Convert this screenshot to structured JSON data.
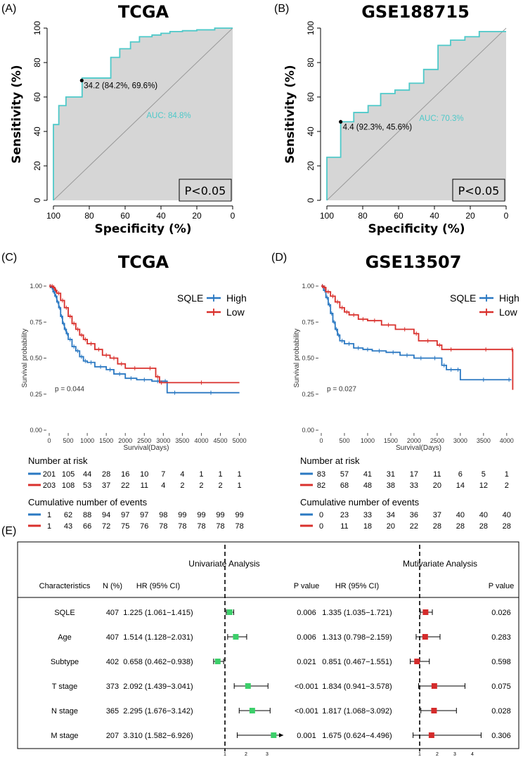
{
  "panels": {
    "A": {
      "label": "(A)",
      "title": "TCGA"
    },
    "B": {
      "label": "(B)",
      "title": "GSE188715"
    },
    "C": {
      "label": "(C)",
      "title": "TCGA"
    },
    "D": {
      "label": "(D)",
      "title": "GSE13507"
    },
    "E": {
      "label": "(E)"
    }
  },
  "roc_axes": {
    "ylabel": "Sensitivity (%)",
    "xlabel": "Specificity (%)",
    "ticks": [
      "100",
      "80",
      "60",
      "40",
      "20",
      "0"
    ]
  },
  "km_axes": {
    "ylabel": "Survival probability",
    "xlabel": "Survival(Days)",
    "yticks": [
      "0.00",
      "0.25",
      "0.50",
      "0.75",
      "1.00"
    ],
    "legend_title": "SQLE",
    "legend_high": "High",
    "legend_low": "Low",
    "number_at_risk": "Number at risk",
    "cum_events": "Cumulative number of events"
  },
  "colors": {
    "roc": "#4ec9c9",
    "high": "#2a78c2",
    "low": "#d9302c",
    "uni": "#3ccf6a",
    "multi": "#d42b2b"
  },
  "chart_data": [
    {
      "type": "line",
      "panel": "A",
      "title": "TCGA",
      "xlabel": "Specificity (%)",
      "ylabel": "Sensitivity (%)",
      "xlim": [
        100,
        0
      ],
      "ylim": [
        0,
        100
      ],
      "auc_text": "AUC: 84.8%",
      "p_text": "P<0.05",
      "cutoff_text": "34.2 (84.2%, 69.6%)",
      "cutoff": [
        84.2,
        69.6
      ],
      "x": [
        100,
        100,
        97,
        97,
        93,
        93,
        84,
        84,
        84,
        68,
        68,
        63,
        63,
        57,
        57,
        52,
        52,
        45,
        45,
        40,
        40,
        35,
        35,
        28,
        28,
        20,
        20,
        10,
        10,
        0
      ],
      "y": [
        0,
        44,
        44,
        55,
        55,
        60,
        60,
        69.6,
        71,
        71,
        83,
        83,
        88,
        88,
        92,
        92,
        95,
        95,
        96,
        96,
        97,
        97,
        98,
        98,
        98.5,
        98.5,
        99,
        99,
        100,
        100
      ]
    },
    {
      "type": "line",
      "panel": "B",
      "title": "GSE188715",
      "xlabel": "Specificity (%)",
      "ylabel": "Sensitivity (%)",
      "xlim": [
        100,
        0
      ],
      "ylim": [
        0,
        100
      ],
      "auc_text": "AUC: 70.3%",
      "p_text": "P<0.05",
      "cutoff_text": "4.4 (92.3%, 45.6%)",
      "cutoff": [
        92.3,
        45.6
      ],
      "x": [
        100,
        100,
        92.3,
        92.3,
        85,
        85,
        77,
        77,
        70,
        70,
        62,
        62,
        54,
        54,
        46,
        46,
        38,
        38,
        31,
        31,
        23,
        23,
        15,
        15,
        0
      ],
      "y": [
        0,
        25,
        25,
        45.6,
        45.6,
        51,
        51,
        55,
        55,
        62,
        62,
        64,
        64,
        68,
        68,
        76,
        76,
        90,
        90,
        93,
        93,
        95,
        95,
        98,
        98
      ]
    },
    {
      "type": "line",
      "panel": "C",
      "title": "TCGA",
      "xlabel": "Survival(Days)",
      "ylabel": "Survival probability",
      "xlim": [
        0,
        5100
      ],
      "ylim": [
        0,
        1
      ],
      "x_ticks": [
        "0",
        "500",
        "1000",
        "1500",
        "2000",
        "2500",
        "3000",
        "3500",
        "4000",
        "4500",
        "5000"
      ],
      "p_text": "p = 0.044",
      "series": [
        {
          "name": "High",
          "x": [
            0,
            50,
            100,
            150,
            200,
            250,
            300,
            350,
            400,
            450,
            500,
            600,
            700,
            800,
            900,
            1000,
            1200,
            1500,
            1700,
            2000,
            2300,
            2700,
            3000,
            3100,
            3500,
            5000
          ],
          "y": [
            1.0,
            0.99,
            0.96,
            0.93,
            0.89,
            0.85,
            0.79,
            0.74,
            0.7,
            0.67,
            0.63,
            0.58,
            0.55,
            0.51,
            0.48,
            0.47,
            0.44,
            0.42,
            0.39,
            0.36,
            0.35,
            0.34,
            0.34,
            0.26,
            0.26,
            0.26
          ]
        },
        {
          "name": "Low",
          "x": [
            0,
            50,
            100,
            150,
            200,
            300,
            400,
            500,
            600,
            700,
            800,
            900,
            1000,
            1200,
            1400,
            1600,
            1800,
            2000,
            2500,
            2800,
            2900,
            3000,
            5000
          ],
          "y": [
            1.0,
            1.0,
            0.99,
            0.97,
            0.95,
            0.9,
            0.85,
            0.79,
            0.74,
            0.7,
            0.66,
            0.63,
            0.6,
            0.56,
            0.52,
            0.5,
            0.46,
            0.43,
            0.43,
            0.37,
            0.33,
            0.33,
            0.33
          ]
        }
      ],
      "risk_table": {
        "high": [
          "201",
          "105",
          "44",
          "28",
          "16",
          "10",
          "7",
          "4",
          "1",
          "1",
          "1"
        ],
        "low": [
          "203",
          "108",
          "53",
          "37",
          "22",
          "11",
          "4",
          "2",
          "2",
          "2",
          "1"
        ]
      },
      "events_table": {
        "high": [
          "1",
          "62",
          "88",
          "94",
          "97",
          "97",
          "98",
          "99",
          "99",
          "99",
          "99"
        ],
        "low": [
          "1",
          "43",
          "66",
          "72",
          "75",
          "76",
          "78",
          "78",
          "78",
          "78",
          "78"
        ]
      }
    },
    {
      "type": "line",
      "panel": "D",
      "title": "GSE13507",
      "xlabel": "Survival(Days)",
      "ylabel": "Survival probability",
      "xlim": [
        0,
        4200
      ],
      "ylim": [
        0,
        1
      ],
      "x_ticks": [
        "0",
        "500",
        "1000",
        "1500",
        "2000",
        "2500",
        "3000",
        "3500",
        "4000"
      ],
      "p_text": "p = 0.027",
      "series": [
        {
          "name": "High",
          "x": [
            0,
            50,
            100,
            150,
            200,
            250,
            300,
            350,
            400,
            500,
            700,
            900,
            1100,
            1400,
            1700,
            2000,
            2300,
            2600,
            2700,
            2900,
            3000,
            4000,
            4100
          ],
          "y": [
            1.0,
            0.97,
            0.92,
            0.87,
            0.81,
            0.75,
            0.7,
            0.66,
            0.62,
            0.6,
            0.57,
            0.56,
            0.55,
            0.54,
            0.52,
            0.5,
            0.5,
            0.45,
            0.42,
            0.42,
            0.35,
            0.35,
            0.35
          ]
        },
        {
          "name": "Low",
          "x": [
            0,
            50,
            100,
            200,
            300,
            400,
            500,
            600,
            800,
            1000,
            1300,
            1600,
            2000,
            2100,
            2500,
            2600,
            3000,
            4100,
            4130
          ],
          "y": [
            1.0,
            0.99,
            0.96,
            0.93,
            0.89,
            0.85,
            0.82,
            0.8,
            0.77,
            0.76,
            0.73,
            0.7,
            0.67,
            0.62,
            0.59,
            0.56,
            0.56,
            0.56,
            0.28
          ]
        }
      ],
      "risk_table": {
        "high": [
          "83",
          "57",
          "41",
          "31",
          "17",
          "11",
          "6",
          "5",
          "1"
        ],
        "low": [
          "82",
          "68",
          "48",
          "38",
          "33",
          "20",
          "14",
          "12",
          "2"
        ]
      },
      "events_table": {
        "high": [
          "0",
          "23",
          "33",
          "34",
          "36",
          "37",
          "40",
          "40",
          "40"
        ],
        "low": [
          "0",
          "11",
          "18",
          "20",
          "22",
          "28",
          "28",
          "28",
          "28"
        ]
      }
    },
    {
      "type": "table",
      "panel": "E",
      "title_uni": "Univariate Analysis",
      "title_multi": "Mutivariate Analysis",
      "columns": [
        "Characteristics",
        "N (%)",
        "HR (95% CI)",
        "P value",
        "HR (95% CI)",
        "P value"
      ],
      "uni_axis_ticks": [
        "1",
        "2",
        "3"
      ],
      "multi_axis_ticks": [
        "1",
        "2",
        "3",
        "4"
      ],
      "rows": [
        {
          "name": "SQLE",
          "n": "407",
          "uni_text": "1.225 (1.061−1.415)",
          "uni_p": "0.006",
          "multi_text": "1.335 (1.035−1.721)",
          "multi_p": "0.026",
          "uni": [
            1.225,
            1.061,
            1.415
          ],
          "multi": [
            1.335,
            1.035,
            1.721
          ]
        },
        {
          "name": "Age",
          "n": "407",
          "uni_text": "1.514 (1.128−2.031)",
          "uni_p": "0.006",
          "multi_text": "1.313 (0.798−2.159)",
          "multi_p": "0.283",
          "uni": [
            1.514,
            1.128,
            2.031
          ],
          "multi": [
            1.313,
            0.798,
            2.159
          ]
        },
        {
          "name": "Subtype",
          "n": "402",
          "uni_text": "0.658 (0.462−0.938)",
          "uni_p": "0.021",
          "multi_text": "0.851 (0.467−1.551)",
          "multi_p": "0.598",
          "uni": [
            0.658,
            0.462,
            0.938
          ],
          "multi": [
            0.851,
            0.467,
            1.551
          ]
        },
        {
          "name": "T stage",
          "n": "373",
          "uni_text": "2.092 (1.439−3.041)",
          "uni_p": "<0.001",
          "multi_text": "1.834 (0.941−3.578)",
          "multi_p": "0.075",
          "uni": [
            2.092,
            1.439,
            3.041
          ],
          "multi": [
            1.834,
            0.941,
            3.578
          ]
        },
        {
          "name": "N stage",
          "n": "365",
          "uni_text": "2.295 (1.676−3.142)",
          "uni_p": "<0.001",
          "multi_text": "1.817 (1.068−3.092)",
          "multi_p": "0.028",
          "uni": [
            2.295,
            1.676,
            3.142
          ],
          "multi": [
            1.817,
            1.068,
            3.092
          ]
        },
        {
          "name": "M stage",
          "n": "207",
          "uni_text": "3.310 (1.582−6.926)",
          "uni_p": "0.001",
          "multi_text": "1.675 (0.624−4.496)",
          "multi_p": "0.306",
          "uni": [
            3.31,
            1.582,
            6.926
          ],
          "multi": [
            1.675,
            0.624,
            4.496
          ]
        }
      ]
    }
  ]
}
